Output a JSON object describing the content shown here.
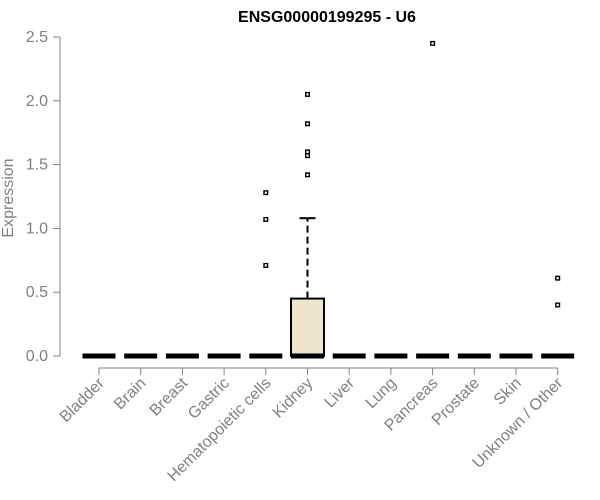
{
  "chart_data": {
    "type": "box",
    "title": "ENSG00000199295 - U6",
    "xlabel": "",
    "ylabel": "Expression",
    "ylim": [
      0,
      2.5
    ],
    "yticks": [
      "0.0",
      "0.5",
      "1.0",
      "1.5",
      "2.0",
      "2.5"
    ],
    "grid": false,
    "categories": [
      "Bladder",
      "Brain",
      "Breast",
      "Gastric",
      "Hematopoietic cells",
      "Kidney",
      "Liver",
      "Lung",
      "Pancreas",
      "Prostate",
      "Skin",
      "Unknown / Other"
    ],
    "boxes": [
      {
        "min": 0,
        "q1": 0,
        "median": 0,
        "q3": 0,
        "max": 0,
        "outliers": []
      },
      {
        "min": 0,
        "q1": 0,
        "median": 0,
        "q3": 0,
        "max": 0,
        "outliers": []
      },
      {
        "min": 0,
        "q1": 0,
        "median": 0,
        "q3": 0,
        "max": 0,
        "outliers": []
      },
      {
        "min": 0,
        "q1": 0,
        "median": 0,
        "q3": 0,
        "max": 0,
        "outliers": []
      },
      {
        "min": 0,
        "q1": 0,
        "median": 0,
        "q3": 0,
        "max": 0,
        "outliers": [
          0.71,
          1.07,
          1.28
        ]
      },
      {
        "min": 0,
        "q1": 0,
        "median": 0,
        "q3": 0.45,
        "max": 1.08,
        "outliers": [
          1.42,
          1.57,
          1.6,
          1.82,
          2.05
        ]
      },
      {
        "min": 0,
        "q1": 0,
        "median": 0,
        "q3": 0,
        "max": 0,
        "outliers": []
      },
      {
        "min": 0,
        "q1": 0,
        "median": 0,
        "q3": 0,
        "max": 0,
        "outliers": []
      },
      {
        "min": 0,
        "q1": 0,
        "median": 0,
        "q3": 0,
        "max": 0,
        "outliers": [
          2.45
        ]
      },
      {
        "min": 0,
        "q1": 0,
        "median": 0,
        "q3": 0,
        "max": 0,
        "outliers": []
      },
      {
        "min": 0,
        "q1": 0,
        "median": 0,
        "q3": 0,
        "max": 0,
        "outliers": []
      },
      {
        "min": 0,
        "q1": 0,
        "median": 0,
        "q3": 0,
        "max": 0,
        "outliers": [
          0.4,
          0.61
        ]
      }
    ],
    "colors": {
      "box_fill": "#ede6cc",
      "box_stroke": "#000000",
      "axis": "#808080",
      "text": "#808080",
      "title": "#000000"
    }
  }
}
